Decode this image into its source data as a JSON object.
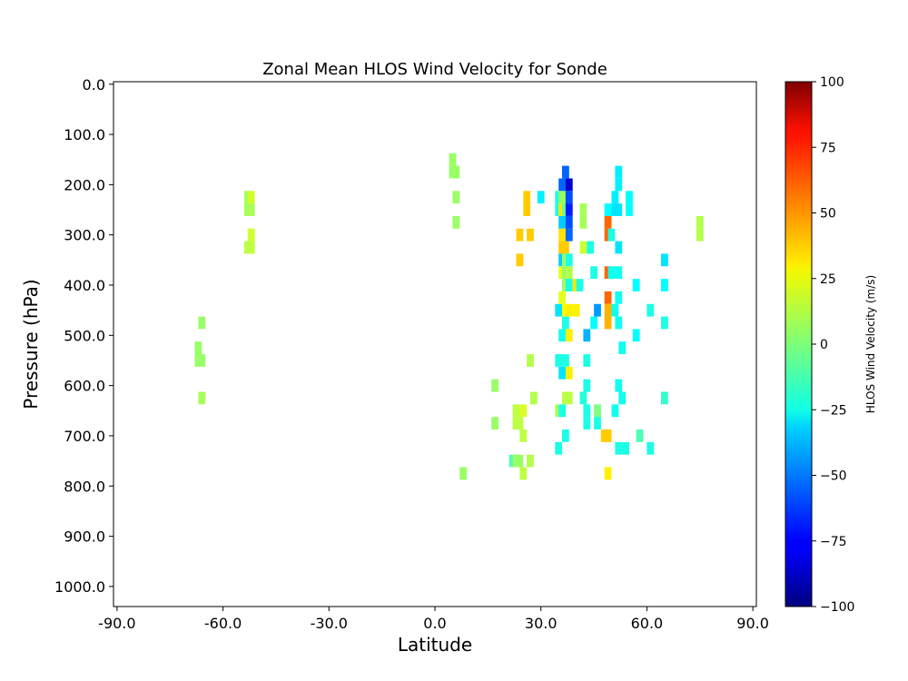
{
  "chart_data": {
    "type": "heatmap",
    "title": "Zonal Mean HLOS Wind Velocity      for Sonde",
    "xlabel": "Latitude",
    "ylabel": "Pressure (hPa)",
    "xlim": [
      -91,
      91
    ],
    "ylim": [
      1040,
      -5
    ],
    "y_inverted": true,
    "xticks": [
      -90,
      -60,
      -30,
      0,
      30,
      60,
      90
    ],
    "xtick_labels": [
      "-90.0",
      "-60.0",
      "-30.0",
      "0.0",
      "30.0",
      "60.0",
      "90.0"
    ],
    "yticks": [
      0,
      100,
      200,
      300,
      400,
      500,
      600,
      700,
      800,
      900,
      1000
    ],
    "ytick_labels": [
      "0.0",
      "100.0",
      "200.0",
      "300.0",
      "400.0",
      "500.0",
      "600.0",
      "700.0",
      "800.0",
      "900.0",
      "1000.0"
    ],
    "colormap": "jet",
    "colorbar": {
      "label": "HLOS Wind Velocity (m/s)",
      "min": -100,
      "max": 100,
      "ticks": [
        -100,
        -75,
        -50,
        -25,
        0,
        25,
        50,
        75,
        100
      ],
      "tick_labels": [
        "−100",
        "−75",
        "−50",
        "−25",
        "0",
        "25",
        "50",
        "75",
        "100"
      ]
    },
    "cell_size": {
      "lat": 2,
      "pressure": 25
    },
    "cells": [
      {
        "lat": -53,
        "p": 225,
        "v": 8
      },
      {
        "lat": -53,
        "p": 250,
        "v": 8
      },
      {
        "lat": -52,
        "p": 225,
        "v": 16
      },
      {
        "lat": -52,
        "p": 250,
        "v": 8
      },
      {
        "lat": -52,
        "p": 300,
        "v": 16
      },
      {
        "lat": -53,
        "p": 325,
        "v": 12
      },
      {
        "lat": -52,
        "p": 325,
        "v": 12
      },
      {
        "lat": -66,
        "p": 475,
        "v": 5
      },
      {
        "lat": -67,
        "p": 525,
        "v": 5
      },
      {
        "lat": -67,
        "p": 550,
        "v": 5
      },
      {
        "lat": -66,
        "p": 550,
        "v": 5
      },
      {
        "lat": -66,
        "p": 625,
        "v": 8
      },
      {
        "lat": 5,
        "p": 150,
        "v": 5
      },
      {
        "lat": 5,
        "p": 175,
        "v": 5
      },
      {
        "lat": 6,
        "p": 175,
        "v": 5
      },
      {
        "lat": 6,
        "p": 225,
        "v": 5
      },
      {
        "lat": 6,
        "p": 275,
        "v": 5
      },
      {
        "lat": 8,
        "p": 775,
        "v": 5
      },
      {
        "lat": 17,
        "p": 600,
        "v": 5
      },
      {
        "lat": 17,
        "p": 675,
        "v": 5
      },
      {
        "lat": 22,
        "p": 750,
        "v": -10
      },
      {
        "lat": 23,
        "p": 750,
        "v": 5
      },
      {
        "lat": 24,
        "p": 750,
        "v": 5
      },
      {
        "lat": 27,
        "p": 750,
        "v": 10
      },
      {
        "lat": 23,
        "p": 650,
        "v": 12
      },
      {
        "lat": 23,
        "p": 675,
        "v": 12
      },
      {
        "lat": 24,
        "p": 675,
        "v": 12
      },
      {
        "lat": 25,
        "p": 650,
        "v": 18
      },
      {
        "lat": 25,
        "p": 700,
        "v": 12
      },
      {
        "lat": 25,
        "p": 775,
        "v": 12
      },
      {
        "lat": 24,
        "p": 350,
        "v": 35
      },
      {
        "lat": 24,
        "p": 300,
        "v": 35
      },
      {
        "lat": 26,
        "p": 225,
        "v": 35
      },
      {
        "lat": 26,
        "p": 250,
        "v": 35
      },
      {
        "lat": 27,
        "p": 300,
        "v": 35
      },
      {
        "lat": 27,
        "p": 550,
        "v": 10
      },
      {
        "lat": 28,
        "p": 625,
        "v": 10
      },
      {
        "lat": 30,
        "p": 225,
        "v": -28
      },
      {
        "lat": 35,
        "p": 225,
        "v": -20
      },
      {
        "lat": 35,
        "p": 250,
        "v": -20
      },
      {
        "lat": 35,
        "p": 450,
        "v": -30
      },
      {
        "lat": 35,
        "p": 550,
        "v": -20
      },
      {
        "lat": 35,
        "p": 650,
        "v": 8
      },
      {
        "lat": 35,
        "p": 725,
        "v": -20
      },
      {
        "lat": 36,
        "p": 200,
        "v": -55
      },
      {
        "lat": 36,
        "p": 225,
        "v": 5
      },
      {
        "lat": 36,
        "p": 250,
        "v": 30
      },
      {
        "lat": 36,
        "p": 275,
        "v": -35
      },
      {
        "lat": 36,
        "p": 300,
        "v": 30
      },
      {
        "lat": 36,
        "p": 325,
        "v": 35
      },
      {
        "lat": 36,
        "p": 350,
        "v": -35
      },
      {
        "lat": 36,
        "p": 375,
        "v": 20
      },
      {
        "lat": 36,
        "p": 425,
        "v": 20
      },
      {
        "lat": 36,
        "p": 500,
        "v": -22
      },
      {
        "lat": 36,
        "p": 575,
        "v": -30
      },
      {
        "lat": 36,
        "p": 650,
        "v": -20
      },
      {
        "lat": 37,
        "p": 175,
        "v": -55
      },
      {
        "lat": 37,
        "p": 200,
        "v": -55
      },
      {
        "lat": 37,
        "p": 225,
        "v": 5
      },
      {
        "lat": 37,
        "p": 250,
        "v": -5
      },
      {
        "lat": 37,
        "p": 300,
        "v": 30
      },
      {
        "lat": 37,
        "p": 325,
        "v": 35
      },
      {
        "lat": 37,
        "p": 350,
        "v": 5
      },
      {
        "lat": 37,
        "p": 375,
        "v": 5
      },
      {
        "lat": 37,
        "p": 400,
        "v": 5
      },
      {
        "lat": 37,
        "p": 450,
        "v": 25
      },
      {
        "lat": 37,
        "p": 475,
        "v": -20
      },
      {
        "lat": 37,
        "p": 550,
        "v": -20
      },
      {
        "lat": 37,
        "p": 625,
        "v": 12
      },
      {
        "lat": 37,
        "p": 700,
        "v": -20
      },
      {
        "lat": 38,
        "p": 200,
        "v": -85
      },
      {
        "lat": 38,
        "p": 225,
        "v": -60
      },
      {
        "lat": 38,
        "p": 250,
        "v": -70
      },
      {
        "lat": 38,
        "p": 275,
        "v": -60
      },
      {
        "lat": 38,
        "p": 300,
        "v": -55
      },
      {
        "lat": 38,
        "p": 350,
        "v": -20
      },
      {
        "lat": 38,
        "p": 375,
        "v": 10
      },
      {
        "lat": 38,
        "p": 400,
        "v": -20
      },
      {
        "lat": 38,
        "p": 450,
        "v": 28
      },
      {
        "lat": 38,
        "p": 500,
        "v": 28
      },
      {
        "lat": 38,
        "p": 575,
        "v": 28
      },
      {
        "lat": 38,
        "p": 625,
        "v": 12
      },
      {
        "lat": 40,
        "p": 400,
        "v": 30
      },
      {
        "lat": 40,
        "p": 450,
        "v": 28
      },
      {
        "lat": 41,
        "p": 400,
        "v": -20
      },
      {
        "lat": 42,
        "p": 250,
        "v": 8
      },
      {
        "lat": 42,
        "p": 275,
        "v": 8
      },
      {
        "lat": 42,
        "p": 325,
        "v": 15
      },
      {
        "lat": 43,
        "p": 550,
        "v": -20
      },
      {
        "lat": 43,
        "p": 600,
        "v": -20
      },
      {
        "lat": 42,
        "p": 625,
        "v": -18
      },
      {
        "lat": 43,
        "p": 650,
        "v": -20
      },
      {
        "lat": 43,
        "p": 500,
        "v": -40
      },
      {
        "lat": 43,
        "p": 675,
        "v": -20
      },
      {
        "lat": 44,
        "p": 325,
        "v": -20
      },
      {
        "lat": 45,
        "p": 375,
        "v": -20
      },
      {
        "lat": 45,
        "p": 475,
        "v": -25
      },
      {
        "lat": 46,
        "p": 450,
        "v": -45
      },
      {
        "lat": 46,
        "p": 650,
        "v": 0
      },
      {
        "lat": 46,
        "p": 675,
        "v": -20
      },
      {
        "lat": 48,
        "p": 700,
        "v": 35
      },
      {
        "lat": 49,
        "p": 700,
        "v": 35
      },
      {
        "lat": 49,
        "p": 250,
        "v": -25
      },
      {
        "lat": 49,
        "p": 275,
        "v": 55
      },
      {
        "lat": 49,
        "p": 300,
        "v": 55
      },
      {
        "lat": 49,
        "p": 375,
        "v": 55
      },
      {
        "lat": 49,
        "p": 425,
        "v": 55
      },
      {
        "lat": 49,
        "p": 450,
        "v": 40
      },
      {
        "lat": 49,
        "p": 475,
        "v": 40
      },
      {
        "lat": 49,
        "p": 775,
        "v": 28
      },
      {
        "lat": 50,
        "p": 300,
        "v": -20
      },
      {
        "lat": 50,
        "p": 375,
        "v": -22
      },
      {
        "lat": 51,
        "p": 225,
        "v": -28
      },
      {
        "lat": 51,
        "p": 250,
        "v": -30
      },
      {
        "lat": 51,
        "p": 450,
        "v": -22
      },
      {
        "lat": 51,
        "p": 650,
        "v": -22
      },
      {
        "lat": 52,
        "p": 175,
        "v": -28
      },
      {
        "lat": 52,
        "p": 200,
        "v": -28
      },
      {
        "lat": 52,
        "p": 250,
        "v": -30
      },
      {
        "lat": 52,
        "p": 325,
        "v": -30
      },
      {
        "lat": 52,
        "p": 375,
        "v": -22
      },
      {
        "lat": 52,
        "p": 425,
        "v": -22
      },
      {
        "lat": 52,
        "p": 475,
        "v": -22
      },
      {
        "lat": 52,
        "p": 600,
        "v": -22
      },
      {
        "lat": 52,
        "p": 725,
        "v": -20
      },
      {
        "lat": 53,
        "p": 525,
        "v": -22
      },
      {
        "lat": 53,
        "p": 625,
        "v": -22
      },
      {
        "lat": 54,
        "p": 725,
        "v": -20
      },
      {
        "lat": 55,
        "p": 225,
        "v": -25
      },
      {
        "lat": 55,
        "p": 250,
        "v": -25
      },
      {
        "lat": 57,
        "p": 400,
        "v": -25
      },
      {
        "lat": 57,
        "p": 500,
        "v": -25
      },
      {
        "lat": 58,
        "p": 700,
        "v": -10
      },
      {
        "lat": 61,
        "p": 450,
        "v": -20
      },
      {
        "lat": 61,
        "p": 725,
        "v": -20
      },
      {
        "lat": 65,
        "p": 350,
        "v": -30
      },
      {
        "lat": 65,
        "p": 400,
        "v": -25
      },
      {
        "lat": 65,
        "p": 475,
        "v": -20
      },
      {
        "lat": 65,
        "p": 625,
        "v": -15
      },
      {
        "lat": 75,
        "p": 275,
        "v": 10
      },
      {
        "lat": 75,
        "p": 300,
        "v": 10
      }
    ]
  }
}
